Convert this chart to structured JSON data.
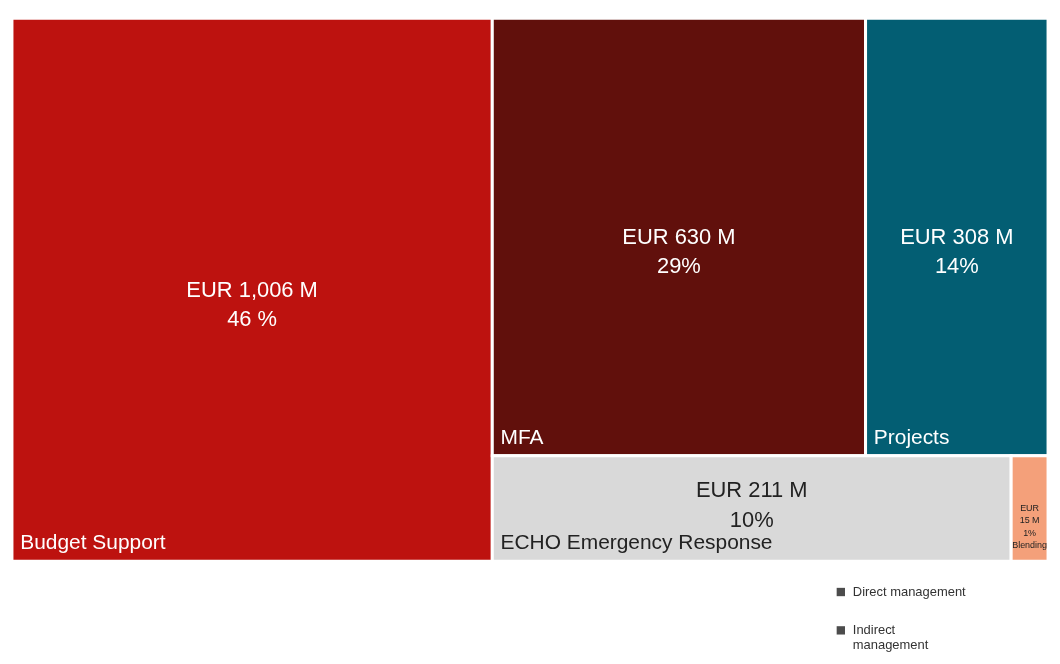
{
  "chart_data": {
    "type": "other",
    "categories": [
      "Budget Support",
      "MFA",
      "Projects",
      "ECHO Emergency Response",
      "Blending"
    ],
    "values": [
      1006,
      630,
      308,
      211,
      15
    ],
    "colors": [
      "#bd120f",
      "#61100c",
      "#035e73",
      "#d9d9d9",
      "#f4a07a"
    ],
    "value_labels": [
      "EUR 1,006 M\n46 %",
      "EUR 630 M\n29%",
      "EUR 308 M\n14%",
      "EUR 211 M\n10%",
      "EUR\n15 M\n1%"
    ],
    "annotations": [
      "Direct management",
      "Indirect\nmanagement"
    ]
  }
}
